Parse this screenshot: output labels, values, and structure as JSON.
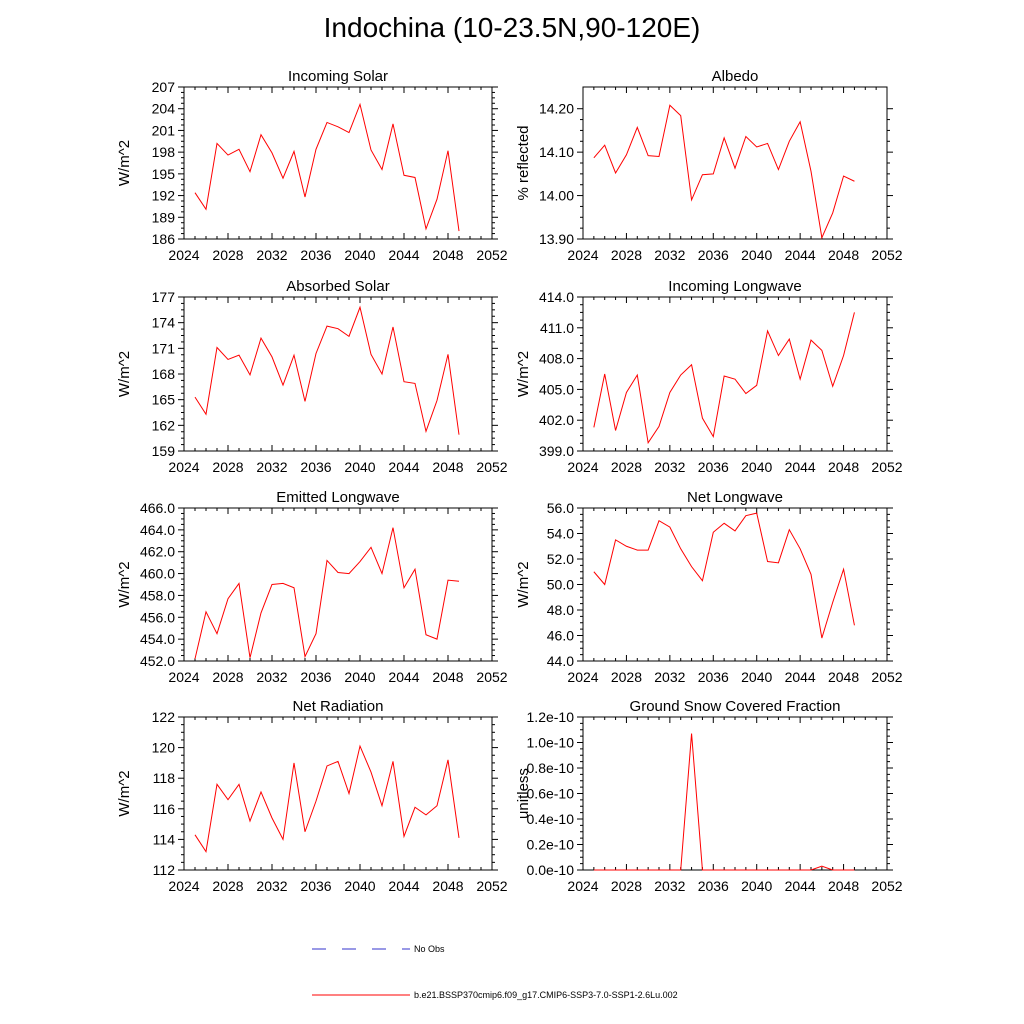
{
  "title": "Indochina (10-23.5N,90-120E)",
  "colors": {
    "model": "#ff0000",
    "obs": "#3333cc",
    "axis": "#000000"
  },
  "legend": {
    "obs_label": "No Obs",
    "model_label": "b.e21.BSSP370cmip6.f09_g17.CMIP6-SSP3-7.0-SSP1-2.6Lu.002"
  },
  "chart_data": [
    {
      "type": "line",
      "title": "Incoming Solar",
      "ylabel": "W/m^2",
      "xlim": [
        2024,
        2052
      ],
      "ylim": [
        186,
        207
      ],
      "xticks": [
        2024,
        2028,
        2032,
        2036,
        2040,
        2044,
        2048,
        2052
      ],
      "xtick_labels": [
        "2024",
        "2028",
        "2032",
        "2036",
        "2040",
        "2044",
        "2048",
        "2052"
      ],
      "yticks": [
        186,
        189,
        192,
        195,
        198,
        201,
        204,
        207
      ],
      "ytick_labels": [
        "186",
        "189",
        "192",
        "195",
        "198",
        "201",
        "204",
        "207"
      ],
      "grid": false,
      "x": [
        2025,
        2026,
        2027,
        2028,
        2029,
        2030,
        2031,
        2032,
        2033,
        2034,
        2035,
        2036,
        2037,
        2038,
        2039,
        2040,
        2041,
        2042,
        2043,
        2044,
        2045,
        2046,
        2047,
        2048,
        2049
      ],
      "y": [
        192.4,
        190.1,
        199.2,
        197.6,
        198.4,
        195.3,
        200.4,
        197.9,
        194.4,
        198.1,
        191.8,
        198.4,
        202.1,
        201.5,
        200.7,
        204.6,
        198.3,
        195.6,
        201.9,
        194.8,
        194.5,
        187.4,
        191.5,
        198.2,
        187.1
      ]
    },
    {
      "type": "line",
      "title": "Albedo",
      "ylabel": "% reflected",
      "xlim": [
        2024,
        2052
      ],
      "ylim": [
        13.9,
        14.25
      ],
      "xticks": [
        2024,
        2028,
        2032,
        2036,
        2040,
        2044,
        2048,
        2052
      ],
      "xtick_labels": [
        "2024",
        "2028",
        "2032",
        "2036",
        "2040",
        "2044",
        "2048",
        "2052"
      ],
      "yticks": [
        13.9,
        14.0,
        14.1,
        14.2
      ],
      "ytick_labels": [
        "13.90",
        "14.00",
        "14.10",
        "14.20"
      ],
      "grid": false,
      "x": [
        2025,
        2026,
        2027,
        2028,
        2029,
        2030,
        2031,
        2032,
        2033,
        2034,
        2035,
        2036,
        2037,
        2038,
        2039,
        2040,
        2041,
        2042,
        2043,
        2044,
        2045,
        2046,
        2047,
        2048,
        2049
      ],
      "y": [
        14.087,
        14.116,
        14.052,
        14.094,
        14.157,
        14.092,
        14.09,
        14.208,
        14.184,
        13.99,
        14.048,
        14.05,
        14.133,
        14.063,
        14.136,
        14.112,
        14.12,
        14.06,
        14.125,
        14.17,
        14.056,
        13.903,
        13.96,
        14.045,
        14.033
      ]
    },
    {
      "type": "line",
      "title": "Absorbed Solar",
      "ylabel": "W/m^2",
      "xlim": [
        2024,
        2052
      ],
      "ylim": [
        159,
        177
      ],
      "xticks": [
        2024,
        2028,
        2032,
        2036,
        2040,
        2044,
        2048,
        2052
      ],
      "xtick_labels": [
        "2024",
        "2028",
        "2032",
        "2036",
        "2040",
        "2044",
        "2048",
        "2052"
      ],
      "yticks": [
        159,
        162,
        165,
        168,
        171,
        174,
        177
      ],
      "ytick_labels": [
        "159",
        "162",
        "165",
        "168",
        "171",
        "174",
        "177"
      ],
      "grid": false,
      "x": [
        2025,
        2026,
        2027,
        2028,
        2029,
        2030,
        2031,
        2032,
        2033,
        2034,
        2035,
        2036,
        2037,
        2038,
        2039,
        2040,
        2041,
        2042,
        2043,
        2044,
        2045,
        2046,
        2047,
        2048,
        2049
      ],
      "y": [
        165.3,
        163.3,
        171.1,
        169.7,
        170.2,
        167.9,
        172.2,
        170.0,
        166.7,
        170.2,
        164.8,
        170.4,
        173.6,
        173.3,
        172.4,
        175.8,
        170.3,
        168.0,
        173.5,
        167.1,
        166.9,
        161.3,
        164.9,
        170.3,
        160.9
      ]
    },
    {
      "type": "line",
      "title": "Incoming Longwave",
      "ylabel": "W/m^2",
      "xlim": [
        2024,
        2052
      ],
      "ylim": [
        399,
        414
      ],
      "xticks": [
        2024,
        2028,
        2032,
        2036,
        2040,
        2044,
        2048,
        2052
      ],
      "xtick_labels": [
        "2024",
        "2028",
        "2032",
        "2036",
        "2040",
        "2044",
        "2048",
        "2052"
      ],
      "yticks": [
        399,
        402,
        405,
        408,
        411,
        414
      ],
      "ytick_labels": [
        "399.0",
        "402.0",
        "405.0",
        "408.0",
        "411.0",
        "414.0"
      ],
      "grid": false,
      "x": [
        2025,
        2026,
        2027,
        2028,
        2029,
        2030,
        2031,
        2032,
        2033,
        2034,
        2035,
        2036,
        2037,
        2038,
        2039,
        2040,
        2041,
        2042,
        2043,
        2044,
        2045,
        2046,
        2047,
        2048,
        2049
      ],
      "y": [
        401.3,
        406.5,
        401.0,
        404.7,
        406.4,
        399.8,
        401.4,
        404.7,
        406.4,
        407.4,
        402.2,
        400.4,
        406.3,
        406.0,
        404.6,
        405.4,
        410.7,
        408.3,
        409.9,
        406.0,
        409.8,
        408.8,
        405.3,
        408.3,
        412.5
      ]
    },
    {
      "type": "line",
      "title": "Emitted Longwave",
      "ylabel": "W/m^2",
      "xlim": [
        2024,
        2052
      ],
      "ylim": [
        452,
        466
      ],
      "xticks": [
        2024,
        2028,
        2032,
        2036,
        2040,
        2044,
        2048,
        2052
      ],
      "xtick_labels": [
        "2024",
        "2028",
        "2032",
        "2036",
        "2040",
        "2044",
        "2048",
        "2052"
      ],
      "yticks": [
        452,
        454,
        456,
        458,
        460,
        462,
        464,
        466
      ],
      "ytick_labels": [
        "452.0",
        "454.0",
        "456.0",
        "458.0",
        "460.0",
        "462.0",
        "464.0",
        "466.0"
      ],
      "grid": false,
      "x": [
        2025,
        2026,
        2027,
        2028,
        2029,
        2030,
        2031,
        2032,
        2033,
        2034,
        2035,
        2036,
        2037,
        2038,
        2039,
        2040,
        2041,
        2042,
        2043,
        2044,
        2045,
        2046,
        2047,
        2048,
        2049
      ],
      "y": [
        452.2,
        456.5,
        454.5,
        457.7,
        459.1,
        452.3,
        456.4,
        459.0,
        459.1,
        458.7,
        452.4,
        454.5,
        461.2,
        460.1,
        460.0,
        461.1,
        462.4,
        460.0,
        464.2,
        458.7,
        460.4,
        454.4,
        454.0,
        459.4,
        459.3
      ]
    },
    {
      "type": "line",
      "title": "Net Longwave",
      "ylabel": "W/m^2",
      "xlim": [
        2024,
        2052
      ],
      "ylim": [
        44,
        56
      ],
      "xticks": [
        2024,
        2028,
        2032,
        2036,
        2040,
        2044,
        2048,
        2052
      ],
      "xtick_labels": [
        "2024",
        "2028",
        "2032",
        "2036",
        "2040",
        "2044",
        "2048",
        "2052"
      ],
      "yticks": [
        44,
        46,
        48,
        50,
        52,
        54,
        56
      ],
      "ytick_labels": [
        "44.0",
        "46.0",
        "48.0",
        "50.0",
        "52.0",
        "54.0",
        "56.0"
      ],
      "grid": false,
      "x": [
        2025,
        2026,
        2027,
        2028,
        2029,
        2030,
        2031,
        2032,
        2033,
        2034,
        2035,
        2036,
        2037,
        2038,
        2039,
        2040,
        2041,
        2042,
        2043,
        2044,
        2045,
        2046,
        2047,
        2048,
        2049
      ],
      "y": [
        51.0,
        50.0,
        53.5,
        53.0,
        52.7,
        52.7,
        55.0,
        54.5,
        52.8,
        51.4,
        50.3,
        54.1,
        54.8,
        54.2,
        55.4,
        55.6,
        51.8,
        51.7,
        54.3,
        52.8,
        50.8,
        45.8,
        48.6,
        51.2,
        46.8
      ]
    },
    {
      "type": "line",
      "title": "Net Radiation",
      "ylabel": "W/m^2",
      "xlim": [
        2024,
        2052
      ],
      "ylim": [
        112,
        122
      ],
      "xticks": [
        2024,
        2028,
        2032,
        2036,
        2040,
        2044,
        2048,
        2052
      ],
      "xtick_labels": [
        "2024",
        "2028",
        "2032",
        "2036",
        "2040",
        "2044",
        "2048",
        "2052"
      ],
      "yticks": [
        112,
        114,
        116,
        118,
        120,
        122
      ],
      "ytick_labels": [
        "112",
        "114",
        "116",
        "118",
        "120",
        "122"
      ],
      "grid": false,
      "x": [
        2025,
        2026,
        2027,
        2028,
        2029,
        2030,
        2031,
        2032,
        2033,
        2034,
        2035,
        2036,
        2037,
        2038,
        2039,
        2040,
        2041,
        2042,
        2043,
        2044,
        2045,
        2046,
        2047,
        2048,
        2049
      ],
      "y": [
        114.3,
        113.2,
        117.6,
        116.6,
        117.6,
        115.2,
        117.1,
        115.4,
        114.0,
        119.0,
        114.5,
        116.5,
        118.8,
        119.1,
        117.0,
        120.1,
        118.4,
        116.2,
        119.1,
        114.2,
        116.1,
        115.6,
        116.2,
        119.2,
        114.1
      ]
    },
    {
      "type": "line",
      "title": "Ground Snow Covered Fraction",
      "ylabel": "unitless",
      "xlim": [
        2024,
        2052
      ],
      "ylim": [
        0,
        1.2e-10
      ],
      "xticks": [
        2024,
        2028,
        2032,
        2036,
        2040,
        2044,
        2048,
        2052
      ],
      "xtick_labels": [
        "2024",
        "2028",
        "2032",
        "2036",
        "2040",
        "2044",
        "2048",
        "2052"
      ],
      "yticks": [
        0,
        2e-11,
        4e-11,
        6e-11,
        8e-11,
        1e-10,
        1.2e-10
      ],
      "ytick_labels": [
        "0.0e-10",
        "0.2e-10",
        "0.4e-10",
        "0.6e-10",
        "0.8e-10",
        "1.0e-10",
        "1.2e-10"
      ],
      "grid": false,
      "x": [
        2025,
        2026,
        2027,
        2028,
        2029,
        2030,
        2031,
        2032,
        2033,
        2034,
        2035,
        2036,
        2037,
        2038,
        2039,
        2040,
        2041,
        2042,
        2043,
        2044,
        2045,
        2046,
        2047,
        2048,
        2049
      ],
      "y": [
        0,
        0,
        0,
        0,
        0,
        0,
        0,
        0,
        0,
        1.07e-10,
        0,
        0,
        0,
        0,
        0,
        0,
        0,
        0,
        0,
        0,
        0,
        3e-12,
        0,
        0,
        0
      ]
    }
  ]
}
